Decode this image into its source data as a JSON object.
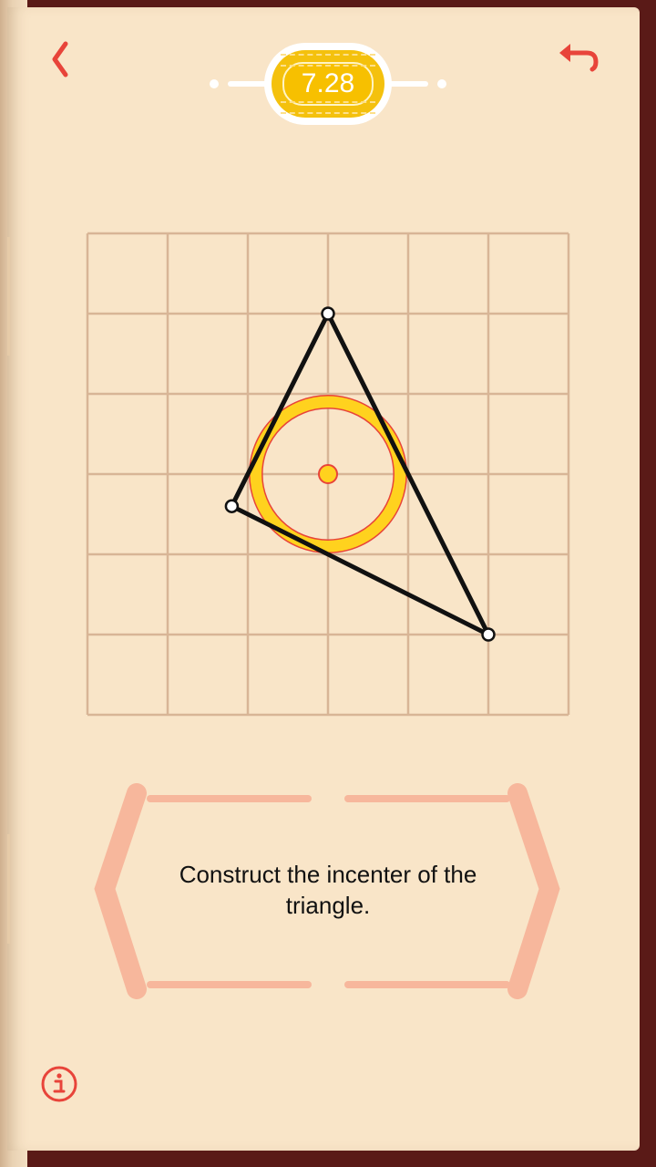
{
  "header": {
    "score": "7.28",
    "back_icon": "chevron-left-icon",
    "undo_icon": "undo-icon"
  },
  "puzzle": {
    "grid": {
      "rows": 6,
      "cols": 6
    },
    "vertices": [
      {
        "name": "top",
        "col": 3,
        "row": 1
      },
      {
        "name": "left",
        "col": 1.8,
        "row": 3.4
      },
      {
        "name": "right",
        "col": 5,
        "row": 5
      }
    ],
    "incircle": {
      "center_col": 3,
      "center_row": 3,
      "radius_cells": 0.9
    }
  },
  "message": {
    "text": "Construct the incenter of the triangle."
  },
  "footer": {
    "info_icon": "info-icon"
  },
  "colors": {
    "accent": "#e8443a",
    "grid_line": "#d8b596",
    "page_bg": "#f9e5c8",
    "circle_fill": "#ffd21e",
    "bracket": "#f7b79c",
    "frame": "#5a1a17"
  }
}
